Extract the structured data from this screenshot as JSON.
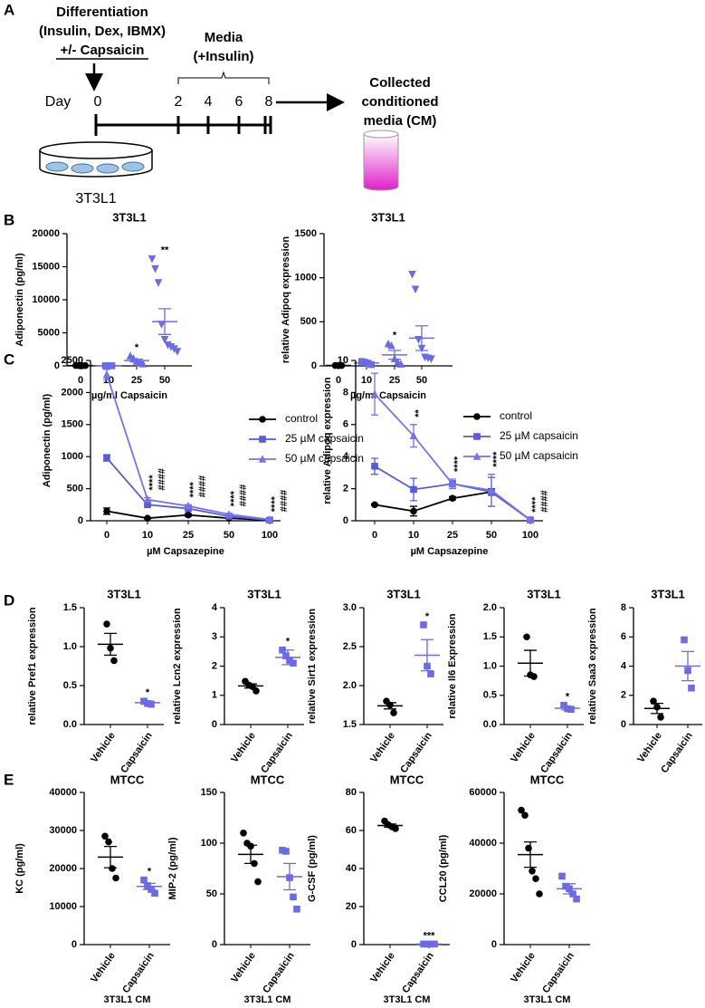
{
  "panel_labels": [
    "A",
    "B",
    "C",
    "D",
    "E"
  ],
  "diagram": {
    "treatment": [
      "Differentiation",
      "(Insulin, Dex, IBMX)",
      "+/- Capsaicin"
    ],
    "day_label": "Day",
    "days": [
      0,
      2,
      4,
      6,
      8
    ],
    "media": [
      "Media",
      "(+Insulin)"
    ],
    "collected": [
      "Collected",
      "conditioned",
      "media (CM)"
    ],
    "cells": "3T3L1"
  },
  "chart_data": [
    {
      "type": "dot",
      "title": "3T3L1",
      "ylabel": "Adiponectin (pg/ml)",
      "xlabel": "µg/ml Capsaicin",
      "categories": [
        "0",
        "10",
        "25",
        "50"
      ],
      "ylim": [
        0,
        20000
      ],
      "yticks": [
        0,
        5000,
        10000,
        15000,
        20000
      ],
      "groups": [
        {
          "color": "#000000",
          "marker": "circle",
          "points": [
            60,
            40,
            30,
            50
          ],
          "mean": 45,
          "sem": 6
        },
        {
          "color": "#6b6be8",
          "marker": "square",
          "points": [
            40,
            30,
            20
          ],
          "mean": 30,
          "sem": 6
        },
        {
          "color": "#6b6be8",
          "marker": "triangle",
          "points": [
            1500,
            1100,
            700,
            450,
            300
          ],
          "mean": 810,
          "sem": 220,
          "annotation": "*"
        },
        {
          "color": "#6b6be8",
          "marker": "triangle-down",
          "points": [
            16200,
            14700,
            12600,
            6300,
            4000,
            3200,
            2900,
            2600,
            2200
          ],
          "mean": 6700,
          "sem": 1950,
          "annotation": "**"
        }
      ]
    },
    {
      "type": "dot",
      "title": "3T3L1",
      "ylabel": "relative Adipoq expression",
      "xlabel": "µg/ml Capsaicin",
      "categories": [
        "0",
        "10",
        "25",
        "50"
      ],
      "ylim": [
        0,
        1500
      ],
      "yticks": [
        0,
        500,
        1000,
        1500
      ],
      "groups": [
        {
          "color": "#000000",
          "marker": "circle",
          "points": [
            5,
            5,
            5
          ],
          "mean": 5,
          "sem": 0
        },
        {
          "color": "#6b6be8",
          "marker": "square",
          "points": [
            50,
            40,
            30,
            15
          ],
          "mean": 34,
          "sem": 8
        },
        {
          "color": "#6b6be8",
          "marker": "triangle",
          "points": [
            250,
            230,
            80,
            40,
            20
          ],
          "mean": 125,
          "sem": 50,
          "annotation": "*"
        },
        {
          "color": "#6b6be8",
          "marker": "triangle-down",
          "points": [
            1040,
            870,
            300,
            200,
            100,
            90,
            80
          ],
          "mean": 315,
          "sem": 140
        }
      ]
    },
    {
      "type": "line",
      "ylabel": "Adiponectin (pg/ml)",
      "xlabel": "µM Capsazepine",
      "categories": [
        "0",
        "10",
        "25",
        "50",
        "100"
      ],
      "ylim": [
        0,
        2500
      ],
      "yticks": [
        0,
        500,
        1000,
        1500,
        2000,
        2500
      ],
      "series": [
        {
          "name": "control",
          "color": "#000000",
          "marker": "circle",
          "values": [
            150,
            40,
            90,
            40,
            10
          ],
          "errors": [
            50,
            10,
            20,
            10,
            5
          ]
        },
        {
          "name": "25 µM capsaicin",
          "color": "#5a5ae0",
          "marker": "square",
          "values": [
            980,
            250,
            190,
            70,
            10
          ],
          "errors": [
            50,
            20,
            20,
            10,
            5
          ]
        },
        {
          "name": "50 µM capsaicin",
          "color": "#7373f0",
          "marker": "triangle",
          "values": [
            2280,
            330,
            230,
            100,
            20
          ],
          "errors": [
            80,
            30,
            20,
            10,
            5
          ]
        }
      ],
      "stars": [
        null,
        "****",
        "****",
        "****",
        "****"
      ],
      "hashes": [
        null,
        "####",
        "####",
        "####",
        "####"
      ]
    },
    {
      "type": "line",
      "ylabel": "relative Adipoq expression",
      "xlabel": "µM Capsazepine",
      "categories": [
        "0",
        "10",
        "25",
        "50",
        "100"
      ],
      "ylim": [
        0,
        10
      ],
      "yticks": [
        0,
        2,
        4,
        6,
        8,
        10
      ],
      "series": [
        {
          "name": "control",
          "color": "#000000",
          "marker": "circle",
          "values": [
            1,
            0.6,
            1.4,
            1.8,
            0.05
          ],
          "errors": [
            0.05,
            0.3,
            0.1,
            0.2,
            0.02
          ]
        },
        {
          "name": "25 µM capsaicin",
          "color": "#5a5ae0",
          "marker": "square",
          "values": [
            3.4,
            1.95,
            2.3,
            1.8,
            0.05
          ],
          "errors": [
            0.5,
            0.7,
            0.2,
            0.9,
            0.02
          ]
        },
        {
          "name": "50 µM capsaicin",
          "color": "#7373f0",
          "marker": "triangle",
          "values": [
            7.9,
            5.3,
            2.3,
            1.9,
            0.05
          ],
          "errors": [
            1.3,
            0.7,
            0.3,
            1.0,
            0.02
          ]
        }
      ],
      "stars": [
        null,
        "**",
        "****",
        "****",
        "****"
      ],
      "hashes": [
        null,
        null,
        null,
        null,
        "####"
      ]
    },
    {
      "type": "dot",
      "title": "3T3L1",
      "ylabel": "relative Pref1 expression",
      "categories": [
        "Vehicle",
        "Capsaicin"
      ],
      "ylim": [
        0,
        1.5
      ],
      "yticks": [
        {
          "value": 0,
          "label": "0.0"
        },
        0.5,
        {
          "value": 1,
          "label": "1.0"
        },
        1.5
      ],
      "groups": [
        {
          "color": "#000000",
          "marker": "circle",
          "points": [
            1.29,
            0.98,
            0.82
          ],
          "mean": 1.03,
          "sem": 0.14
        },
        {
          "color": "#6b6be8",
          "marker": "square",
          "points": [
            0.3,
            0.27,
            0.26
          ],
          "mean": 0.28,
          "sem": 0.02,
          "annotation": "*"
        }
      ]
    },
    {
      "type": "dot",
      "title": "3T3L1",
      "ylabel": "relative Lcn2 expression",
      "categories": [
        "Vehicle",
        "Capsaicin"
      ],
      "ylim": [
        0,
        4
      ],
      "yticks": [
        0,
        1,
        2,
        3,
        4
      ],
      "groups": [
        {
          "color": "#000000",
          "marker": "circle",
          "points": [
            1.48,
            1.35,
            1.3,
            1.15
          ],
          "mean": 1.32,
          "sem": 0.07
        },
        {
          "color": "#6b6be8",
          "marker": "square",
          "points": [
            2.55,
            2.35,
            2.2,
            2.1
          ],
          "mean": 2.3,
          "sem": 0.25,
          "annotation": "*"
        }
      ]
    },
    {
      "type": "dot",
      "title": "3T3L1",
      "ylabel": "relative Sirt1 expression",
      "categories": [
        "Vehicle",
        "Capsaicin"
      ],
      "ylim": [
        1.5,
        3
      ],
      "yticks": [
        1.5,
        {
          "value": 2,
          "label": "2.0"
        },
        2.5,
        {
          "value": 3,
          "label": "3.0"
        }
      ],
      "groups": [
        {
          "color": "#000000",
          "marker": "circle",
          "points": [
            1.8,
            1.75,
            1.65
          ],
          "mean": 1.74,
          "sem": 0.04
        },
        {
          "color": "#6b6be8",
          "marker": "square",
          "points": [
            2.78,
            2.25,
            2.15
          ],
          "mean": 2.39,
          "sem": 0.2,
          "annotation": "*"
        }
      ]
    },
    {
      "type": "dot",
      "title": "3T3L1",
      "ylabel": "relative Il6 Expression",
      "categories": [
        "Vehicle",
        "Capsaicin"
      ],
      "ylim": [
        0,
        2
      ],
      "yticks": [
        {
          "value": 0,
          "label": "0.0"
        },
        0.5,
        {
          "value": 1,
          "label": "1.0"
        },
        1.5,
        {
          "value": 2,
          "label": "2.0"
        }
      ],
      "groups": [
        {
          "color": "#000000",
          "marker": "circle",
          "points": [
            1.5,
            0.85,
            0.82
          ],
          "mean": 1.05,
          "sem": 0.22
        },
        {
          "color": "#6b6be8",
          "marker": "square",
          "points": [
            0.33,
            0.27,
            0.26
          ],
          "mean": 0.28,
          "sem": 0.03,
          "annotation": "*"
        }
      ]
    },
    {
      "type": "dot",
      "title": "3T3L1",
      "ylabel": "relative Saa3 expression",
      "categories": [
        "Vehicle",
        "Capsaicin"
      ],
      "ylim": [
        0,
        8
      ],
      "yticks": [
        0,
        2,
        4,
        6,
        8
      ],
      "groups": [
        {
          "color": "#000000",
          "marker": "circle",
          "points": [
            1.6,
            1.2,
            0.5
          ],
          "mean": 1.1,
          "sem": 0.35
        },
        {
          "color": "#6b6be8",
          "marker": "square",
          "points": [
            5.8,
            3.7,
            2.5
          ],
          "mean": 4,
          "sem": 1
        }
      ]
    },
    {
      "type": "dot",
      "title": "MTCC",
      "ylabel": "KC (pg/ml)",
      "xlabel": "3T3L1 CM",
      "categories": [
        "Vehicle",
        "Capsaicin"
      ],
      "ylim": [
        0,
        40000
      ],
      "yticks": [
        0,
        10000,
        20000,
        30000,
        40000
      ],
      "groups": [
        {
          "color": "#000000",
          "marker": "circle",
          "points": [
            28500,
            27000,
            20000,
            17500
          ],
          "mean": 23000,
          "sem": 2800
        },
        {
          "color": "#6b6be8",
          "marker": "square",
          "points": [
            17000,
            15500,
            14500,
            13500
          ],
          "mean": 15300,
          "sem": 800,
          "annotation": "*"
        }
      ]
    },
    {
      "type": "dot",
      "title": "MTCC",
      "ylabel": "MIP-2 (pg/ml)",
      "xlabel": "3T3L1 CM",
      "categories": [
        "Vehicle",
        "Capsaicin"
      ],
      "ylim": [
        0,
        150
      ],
      "yticks": [
        0,
        50,
        100,
        150
      ],
      "groups": [
        {
          "color": "#000000",
          "marker": "circle",
          "points": [
            110,
            100,
            97,
            80,
            62
          ],
          "mean": 89,
          "sem": 9
        },
        {
          "color": "#6b6be8",
          "marker": "square",
          "points": [
            93,
            92,
            66,
            47,
            35
          ],
          "mean": 67,
          "sem": 13
        }
      ]
    },
    {
      "type": "dot",
      "title": "MTCC",
      "ylabel": "G-CSF (pg/ml)",
      "xlabel": "3T3L1 CM",
      "categories": [
        "Vehicle",
        "Capsaicin"
      ],
      "ylim": [
        0,
        80
      ],
      "yticks": [
        0,
        20,
        40,
        60,
        80
      ],
      "groups": [
        {
          "color": "#000000",
          "marker": "circle",
          "points": [
            65,
            63,
            62,
            61
          ],
          "mean": 62.6,
          "sem": 0.8
        },
        {
          "color": "#6b6be8",
          "marker": "square",
          "points": [
            0.3,
            0.3,
            0.3,
            0.3
          ],
          "mean": 0.3,
          "sem": 0,
          "annotation": "***"
        }
      ]
    },
    {
      "type": "dot",
      "title": "MTCC",
      "ylabel": "CCL20 (pg/ml)",
      "xlabel": "3T3L1 CM",
      "categories": [
        "Vehicle",
        "Capsaicin"
      ],
      "ylim": [
        0,
        60000
      ],
      "yticks": [
        0,
        20000,
        40000,
        60000
      ],
      "groups": [
        {
          "color": "#000000",
          "marker": "circle",
          "points": [
            53000,
            51000,
            38000,
            29000,
            26000,
            20000
          ],
          "mean": 35500,
          "sem": 5000
        },
        {
          "color": "#6b6be8",
          "marker": "square",
          "points": [
            27000,
            23000,
            22000,
            20000,
            18000
          ],
          "mean": 22000,
          "sem": 2000
        }
      ]
    }
  ]
}
